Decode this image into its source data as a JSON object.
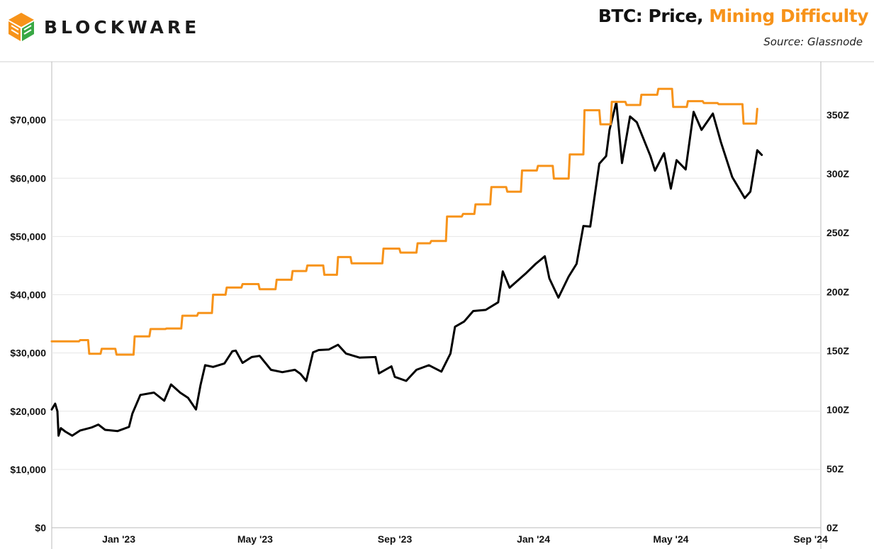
{
  "brand": {
    "name": "BLOCKWARE",
    "logo_icon": "blockware-cube-logo-icon"
  },
  "title": {
    "prefix": "BTC: Price, ",
    "highlight": "Mining Difficulty"
  },
  "source": "Source: Glassnode",
  "colors": {
    "price": "#000000",
    "difficulty": "#f7931a",
    "grid": "#e6e6e6",
    "axis": "#bbbbbb"
  },
  "chart_data": {
    "type": "line",
    "title": "BTC: Price, Mining Difficulty",
    "subtitle": "Source: Glassnode",
    "grid": true,
    "x_axis": {
      "type": "date",
      "range": [
        "2022-11-03",
        "2024-09-10"
      ],
      "ticks": [
        "2023-01-01",
        "2023-05-01",
        "2023-09-01",
        "2024-01-01",
        "2024-05-01",
        "2024-09-01"
      ],
      "tick_labels": [
        "Jan '23",
        "May '23",
        "Sep '23",
        "Jan '24",
        "May '24",
        "Sep '24"
      ]
    },
    "y_left": {
      "range": [
        0,
        80000
      ],
      "ticks": [
        0,
        10000,
        20000,
        30000,
        40000,
        50000,
        60000,
        70000
      ],
      "tick_labels": [
        "$0",
        "$10,000",
        "$20,000",
        "$30,000",
        "$40,000",
        "$50,000",
        "$60,000",
        "$70,000"
      ]
    },
    "y_right": {
      "range": [
        0,
        395
      ],
      "ticks": [
        0,
        50,
        100,
        150,
        200,
        250,
        300,
        350
      ],
      "tick_labels": [
        "0Z",
        "50Z",
        "100Z",
        "150Z",
        "200Z",
        "250Z",
        "300Z",
        "350Z"
      ]
    },
    "series": [
      {
        "axis": "left",
        "color": "#000000",
        "points": [
          [
            "2022-11-03",
            20300
          ],
          [
            "2022-11-06",
            21300
          ],
          [
            "2022-11-08",
            20000
          ],
          [
            "2022-11-09",
            15800
          ],
          [
            "2022-11-11",
            17100
          ],
          [
            "2022-11-15",
            16500
          ],
          [
            "2022-11-21",
            15800
          ],
          [
            "2022-11-28",
            16700
          ],
          [
            "2022-12-08",
            17200
          ],
          [
            "2022-12-14",
            17700
          ],
          [
            "2022-12-20",
            16800
          ],
          [
            "2022-12-31",
            16600
          ],
          [
            "2023-01-10",
            17300
          ],
          [
            "2023-01-13",
            19600
          ],
          [
            "2023-01-20",
            22800
          ],
          [
            "2023-02-01",
            23200
          ],
          [
            "2023-02-10",
            21800
          ],
          [
            "2023-02-16",
            24600
          ],
          [
            "2023-02-24",
            23200
          ],
          [
            "2023-03-03",
            22300
          ],
          [
            "2023-03-10",
            20300
          ],
          [
            "2023-03-14",
            24500
          ],
          [
            "2023-03-18",
            27900
          ],
          [
            "2023-03-25",
            27600
          ],
          [
            "2023-04-04",
            28200
          ],
          [
            "2023-04-11",
            30300
          ],
          [
            "2023-04-14",
            30400
          ],
          [
            "2023-04-20",
            28300
          ],
          [
            "2023-04-28",
            29300
          ],
          [
            "2023-05-05",
            29500
          ],
          [
            "2023-05-15",
            27100
          ],
          [
            "2023-05-25",
            26700
          ],
          [
            "2023-06-05",
            27100
          ],
          [
            "2023-06-10",
            26400
          ],
          [
            "2023-06-15",
            25200
          ],
          [
            "2023-06-21",
            30100
          ],
          [
            "2023-06-26",
            30500
          ],
          [
            "2023-07-05",
            30600
          ],
          [
            "2023-07-13",
            31400
          ],
          [
            "2023-07-20",
            29900
          ],
          [
            "2023-08-01",
            29200
          ],
          [
            "2023-08-15",
            29300
          ],
          [
            "2023-08-18",
            26500
          ],
          [
            "2023-08-29",
            27700
          ],
          [
            "2023-09-01",
            25900
          ],
          [
            "2023-09-11",
            25200
          ],
          [
            "2023-09-20",
            27100
          ],
          [
            "2023-10-01",
            27900
          ],
          [
            "2023-10-12",
            26800
          ],
          [
            "2023-10-20",
            29900
          ],
          [
            "2023-10-24",
            34500
          ],
          [
            "2023-11-01",
            35400
          ],
          [
            "2023-11-09",
            37200
          ],
          [
            "2023-11-20",
            37400
          ],
          [
            "2023-12-01",
            38700
          ],
          [
            "2023-12-05",
            44000
          ],
          [
            "2023-12-11",
            41200
          ],
          [
            "2023-12-25",
            43600
          ],
          [
            "2024-01-03",
            45300
          ],
          [
            "2024-01-11",
            46600
          ],
          [
            "2024-01-15",
            42800
          ],
          [
            "2024-01-23",
            39500
          ],
          [
            "2024-02-01",
            43100
          ],
          [
            "2024-02-08",
            45300
          ],
          [
            "2024-02-14",
            51800
          ],
          [
            "2024-02-20",
            51700
          ],
          [
            "2024-02-28",
            62500
          ],
          [
            "2024-03-05",
            63800
          ],
          [
            "2024-03-08",
            68300
          ],
          [
            "2024-03-14",
            73100
          ],
          [
            "2024-03-19",
            62600
          ],
          [
            "2024-03-26",
            70600
          ],
          [
            "2024-04-01",
            69600
          ],
          [
            "2024-04-13",
            63800
          ],
          [
            "2024-04-17",
            61300
          ],
          [
            "2024-04-25",
            64300
          ],
          [
            "2024-05-01",
            58200
          ],
          [
            "2024-05-06",
            63100
          ],
          [
            "2024-05-14",
            61500
          ],
          [
            "2024-05-21",
            71400
          ],
          [
            "2024-05-28",
            68300
          ],
          [
            "2024-06-07",
            71100
          ],
          [
            "2024-06-14",
            66200
          ],
          [
            "2024-06-24",
            60200
          ],
          [
            "2024-07-05",
            56600
          ],
          [
            "2024-07-10",
            57700
          ],
          [
            "2024-07-16",
            64800
          ],
          [
            "2024-07-20",
            64000
          ]
        ]
      },
      {
        "axis": "right",
        "color": "#f7931a",
        "points": [
          [
            "2022-11-03",
            158.0
          ],
          [
            "2022-11-27",
            158.0
          ],
          [
            "2022-11-28",
            159.0
          ],
          [
            "2022-12-05",
            159.0
          ],
          [
            "2022-12-06",
            147.5
          ],
          [
            "2022-12-16",
            147.5
          ],
          [
            "2022-12-17",
            151.7
          ],
          [
            "2022-12-29",
            151.7
          ],
          [
            "2022-12-30",
            146.7
          ],
          [
            "2023-01-14",
            146.7
          ],
          [
            "2023-01-15",
            162.2
          ],
          [
            "2023-01-28",
            162.2
          ],
          [
            "2023-01-29",
            168.4
          ],
          [
            "2023-02-11",
            168.4
          ],
          [
            "2023-02-12",
            168.9
          ],
          [
            "2023-02-25",
            168.9
          ],
          [
            "2023-02-26",
            179.7
          ],
          [
            "2023-03-11",
            179.7
          ],
          [
            "2023-03-12",
            182.0
          ],
          [
            "2023-03-24",
            182.0
          ],
          [
            "2023-03-25",
            197.5
          ],
          [
            "2023-04-05",
            197.5
          ],
          [
            "2023-04-06",
            203.6
          ],
          [
            "2023-04-19",
            203.6
          ],
          [
            "2023-04-20",
            206.5
          ],
          [
            "2023-05-04",
            206.5
          ],
          [
            "2023-05-05",
            202.2
          ],
          [
            "2023-05-19",
            202.2
          ],
          [
            "2023-05-20",
            210.2
          ],
          [
            "2023-06-02",
            210.2
          ],
          [
            "2023-06-03",
            217.6
          ],
          [
            "2023-06-15",
            217.6
          ],
          [
            "2023-06-16",
            222.3
          ],
          [
            "2023-06-30",
            222.3
          ],
          [
            "2023-07-01",
            214.4
          ],
          [
            "2023-07-12",
            214.4
          ],
          [
            "2023-07-13",
            229.4
          ],
          [
            "2023-07-24",
            229.4
          ],
          [
            "2023-07-25",
            224.1
          ],
          [
            "2023-08-21",
            224.1
          ],
          [
            "2023-08-22",
            236.6
          ],
          [
            "2023-09-05",
            236.6
          ],
          [
            "2023-09-06",
            233.2
          ],
          [
            "2023-09-20",
            233.2
          ],
          [
            "2023-09-21",
            241.1
          ],
          [
            "2023-10-02",
            241.1
          ],
          [
            "2023-10-03",
            243.0
          ],
          [
            "2023-10-16",
            243.0
          ],
          [
            "2023-10-17",
            263.8
          ],
          [
            "2023-10-30",
            263.8
          ],
          [
            "2023-10-31",
            266.0
          ],
          [
            "2023-11-10",
            266.0
          ],
          [
            "2023-11-11",
            274.1
          ],
          [
            "2023-11-24",
            274.1
          ],
          [
            "2023-11-25",
            288.7
          ],
          [
            "2023-12-08",
            288.7
          ],
          [
            "2023-12-09",
            284.8
          ],
          [
            "2023-12-21",
            284.8
          ],
          [
            "2023-12-22",
            302.8
          ],
          [
            "2024-01-04",
            302.8
          ],
          [
            "2024-01-05",
            306.7
          ],
          [
            "2024-01-18",
            306.7
          ],
          [
            "2024-01-19",
            296.0
          ],
          [
            "2024-02-01",
            296.0
          ],
          [
            "2024-02-02",
            316.4
          ],
          [
            "2024-02-14",
            316.4
          ],
          [
            "2024-02-15",
            353.9
          ],
          [
            "2024-02-28",
            353.9
          ],
          [
            "2024-02-29",
            342.0
          ],
          [
            "2024-03-09",
            342.0
          ],
          [
            "2024-03-10",
            361.0
          ],
          [
            "2024-03-22",
            361.0
          ],
          [
            "2024-03-23",
            358.3
          ],
          [
            "2024-04-04",
            358.3
          ],
          [
            "2024-04-05",
            367.0
          ],
          [
            "2024-04-19",
            367.0
          ],
          [
            "2024-04-20",
            372.0
          ],
          [
            "2024-05-02",
            372.0
          ],
          [
            "2024-05-03",
            356.7
          ],
          [
            "2024-05-15",
            356.7
          ],
          [
            "2024-05-16",
            361.6
          ],
          [
            "2024-05-29",
            361.6
          ],
          [
            "2024-05-30",
            360.0
          ],
          [
            "2024-06-11",
            360.0
          ],
          [
            "2024-06-12",
            359.0
          ],
          [
            "2024-07-03",
            359.0
          ],
          [
            "2024-07-04",
            342.5
          ],
          [
            "2024-07-15",
            342.5
          ],
          [
            "2024-07-16",
            355.0
          ]
        ]
      }
    ]
  }
}
